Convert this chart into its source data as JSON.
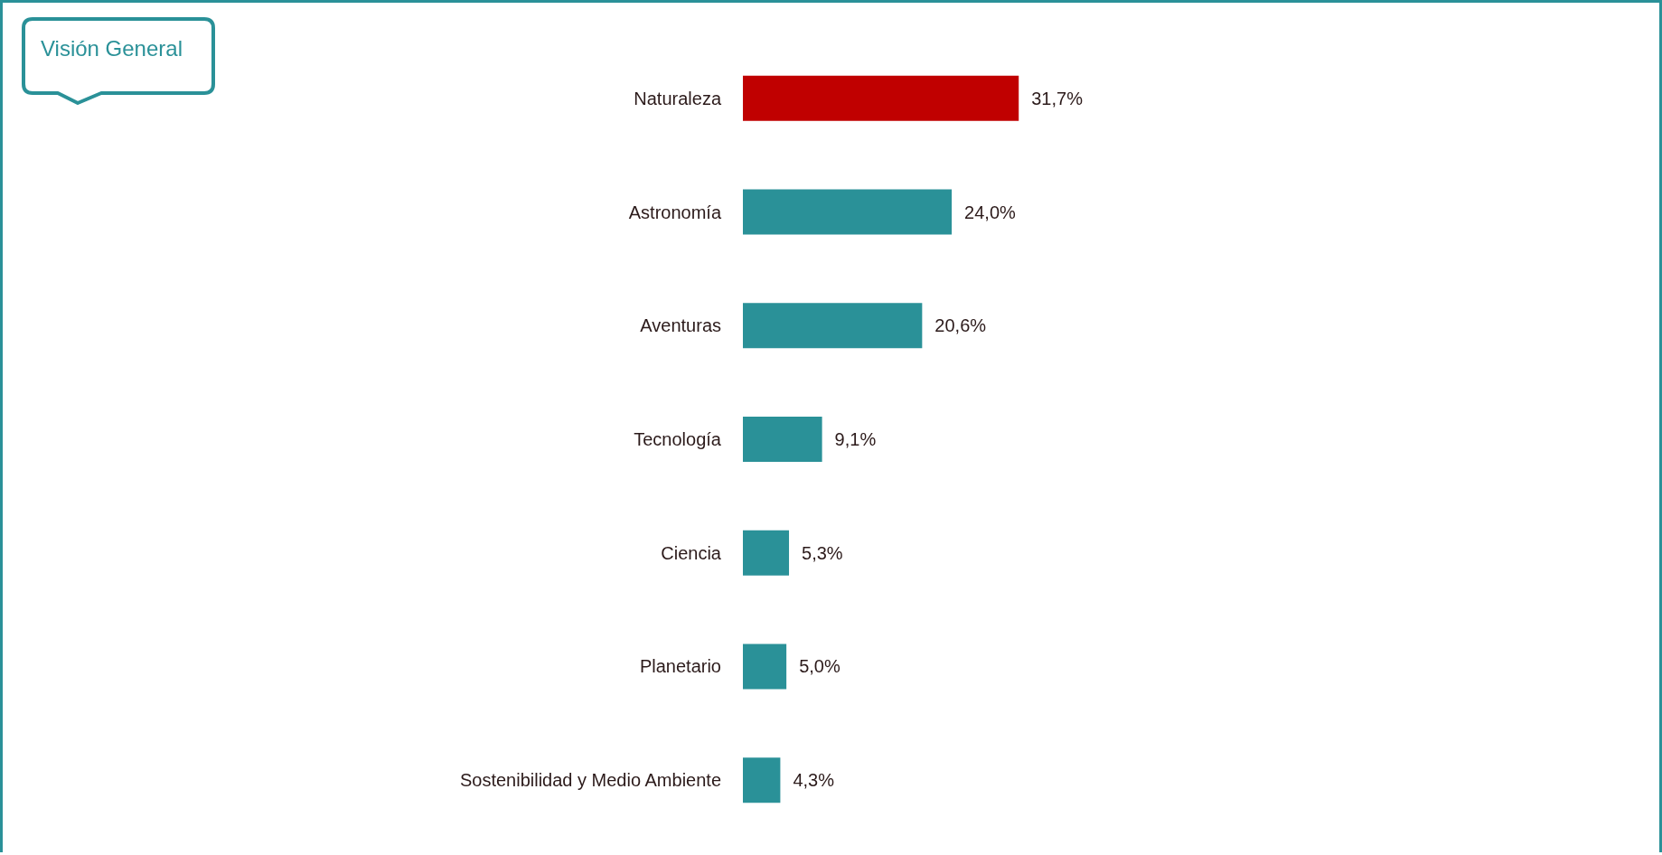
{
  "chart_data": {
    "type": "bar",
    "orientation": "horizontal",
    "title": "Visión General",
    "categories": [
      "Naturaleza",
      "Astronomía",
      "Aventuras",
      "Tecnología",
      "Ciencia",
      "Planetario",
      "Sostenibilidad y Medio Ambiente"
    ],
    "values": [
      31.7,
      24.0,
      20.6,
      9.1,
      5.3,
      5.0,
      4.3
    ],
    "colors": [
      "#c00000",
      "#2a9198",
      "#2a9198",
      "#2a9198",
      "#2a9198",
      "#2a9198",
      "#2a9198"
    ],
    "value_labels": [
      "31,7%",
      "24,0%",
      "20,6%",
      "9,1%",
      "5,3%",
      "5,0%",
      "4,3%"
    ]
  }
}
